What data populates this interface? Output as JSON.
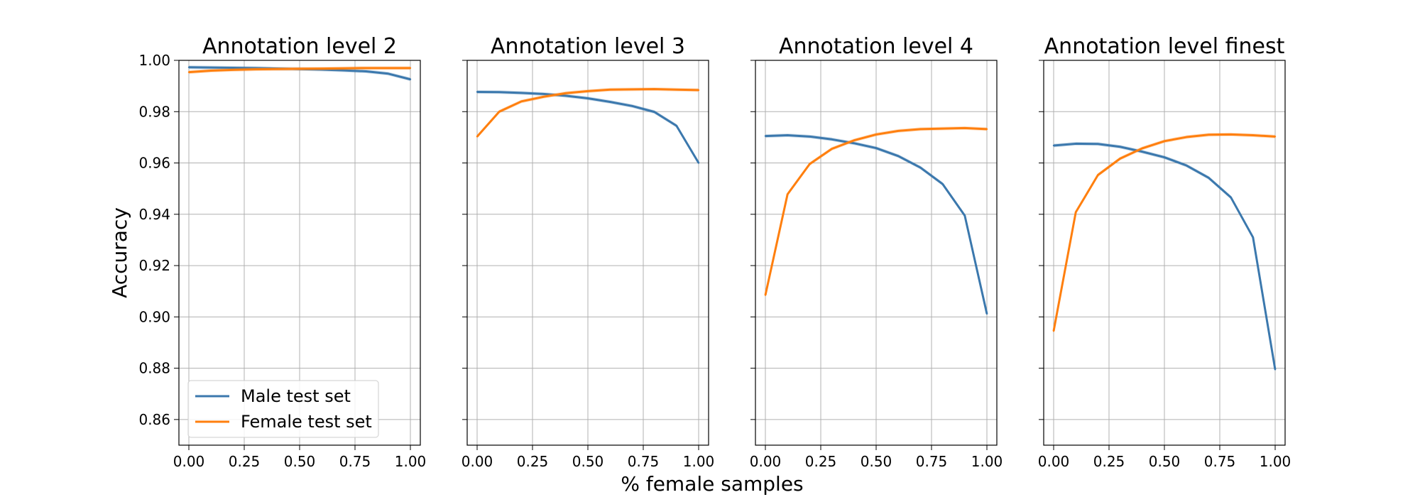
{
  "figure": {
    "ylabel": "Accuracy",
    "xlabel": "% female samples"
  },
  "colors": {
    "male": "#3b78ad",
    "female": "#ff7f0e"
  },
  "legend": {
    "location": "lower-left of first panel",
    "entries": [
      "Male test set",
      "Female test set"
    ]
  },
  "chart_data": [
    {
      "type": "line",
      "title": "Annotation level 2",
      "xlabel": "% female samples",
      "ylabel": "Accuracy",
      "xlim": [
        0,
        1
      ],
      "ylim": [
        0.85,
        1.0
      ],
      "grid": true,
      "x": [
        0.0,
        0.1,
        0.2,
        0.3,
        0.4,
        0.5,
        0.6,
        0.7,
        0.8,
        0.9,
        1.0
      ],
      "xticks": [
        "0.00",
        "0.25",
        "0.50",
        "0.75",
        "1.00"
      ],
      "yticks": [
        "0.86",
        "0.88",
        "0.90",
        "0.92",
        "0.94",
        "0.96",
        "0.98",
        "1.00"
      ],
      "series": [
        {
          "name": "Male test set",
          "values": [
            0.9973,
            0.9972,
            0.9971,
            0.997,
            0.9968,
            0.9966,
            0.9964,
            0.9961,
            0.9957,
            0.9948,
            0.9926
          ]
        },
        {
          "name": "Female test set",
          "values": [
            0.9954,
            0.996,
            0.9963,
            0.9965,
            0.9966,
            0.9967,
            0.9968,
            0.9969,
            0.997,
            0.997,
            0.997
          ]
        }
      ]
    },
    {
      "type": "line",
      "title": "Annotation level 3",
      "xlabel": "% female samples",
      "ylabel": "Accuracy",
      "xlim": [
        0,
        1
      ],
      "ylim": [
        0.85,
        1.0
      ],
      "grid": true,
      "x": [
        0.0,
        0.1,
        0.2,
        0.3,
        0.4,
        0.5,
        0.6,
        0.7,
        0.8,
        0.9,
        1.0
      ],
      "xticks": [
        "0.00",
        "0.25",
        "0.50",
        "0.75",
        "1.00"
      ],
      "series": [
        {
          "name": "Male test set",
          "values": [
            0.9877,
            0.9876,
            0.9873,
            0.9869,
            0.9862,
            0.9852,
            0.9838,
            0.9822,
            0.9799,
            0.9745,
            0.96
          ]
        },
        {
          "name": "Female test set",
          "values": [
            0.9703,
            0.98,
            0.984,
            0.9858,
            0.9872,
            0.988,
            0.9886,
            0.9887,
            0.9888,
            0.9886,
            0.9884
          ]
        }
      ]
    },
    {
      "type": "line",
      "title": "Annotation level 4",
      "xlabel": "% female samples",
      "ylabel": "Accuracy",
      "xlim": [
        0,
        1
      ],
      "ylim": [
        0.85,
        1.0
      ],
      "grid": true,
      "x": [
        0.0,
        0.1,
        0.2,
        0.3,
        0.4,
        0.5,
        0.6,
        0.7,
        0.8,
        0.9,
        1.0
      ],
      "xticks": [
        "0.00",
        "0.25",
        "0.50",
        "0.75",
        "1.00"
      ],
      "series": [
        {
          "name": "Male test set",
          "values": [
            0.9705,
            0.9708,
            0.9703,
            0.9692,
            0.9677,
            0.9658,
            0.9627,
            0.9582,
            0.9518,
            0.9395,
            0.9012
          ]
        },
        {
          "name": "Female test set",
          "values": [
            0.9085,
            0.9478,
            0.9596,
            0.9655,
            0.9688,
            0.9711,
            0.9725,
            0.9732,
            0.9734,
            0.9736,
            0.9732
          ]
        }
      ]
    },
    {
      "type": "line",
      "title": "Annotation level finest",
      "xlabel": "% female samples",
      "ylabel": "Accuracy",
      "xlim": [
        0,
        1
      ],
      "ylim": [
        0.85,
        1.0
      ],
      "grid": true,
      "x": [
        0.0,
        0.1,
        0.2,
        0.3,
        0.4,
        0.5,
        0.6,
        0.7,
        0.8,
        0.9,
        1.0
      ],
      "xticks": [
        "0.00",
        "0.25",
        "0.50",
        "0.75",
        "1.00"
      ],
      "series": [
        {
          "name": "Male test set",
          "values": [
            0.9668,
            0.9675,
            0.9674,
            0.9663,
            0.9644,
            0.9622,
            0.959,
            0.9542,
            0.9466,
            0.931,
            0.8795
          ]
        },
        {
          "name": "Female test set",
          "values": [
            0.8945,
            0.9408,
            0.9553,
            0.9617,
            0.9657,
            0.9685,
            0.9701,
            0.971,
            0.9711,
            0.9708,
            0.9703
          ]
        }
      ]
    }
  ]
}
